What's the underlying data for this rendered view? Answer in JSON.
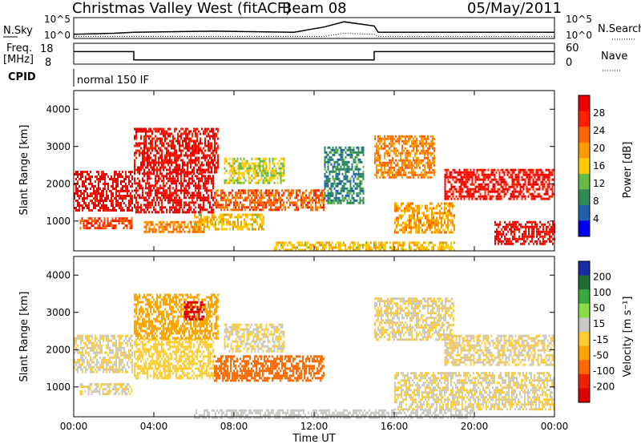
{
  "header": {
    "station": "Christmas Valley West (fitACF)",
    "beam": "Beam 08",
    "date": "05/May/2011"
  },
  "aux_panels": {
    "nsky_label": "N.Sky",
    "nsky_ticks": [
      "10^5",
      "10^0"
    ],
    "nsearch_label": "N.Search",
    "freq_label_line1": "Freq.",
    "freq_label_line2": "[MHz]",
    "freq_ticks": [
      "18",
      "8"
    ],
    "nave_ticks": [
      "60",
      "0"
    ],
    "nave_label": "Nave",
    "cpid_label": "CPID",
    "cpid_value": "normal 150 IF"
  },
  "colors": {
    "power": [
      "#0000ee",
      "#1f5fb0",
      "#2e8b57",
      "#66bb44",
      "#ffcc00",
      "#ff9900",
      "#ff6600",
      "#ff2200",
      "#ee0000"
    ],
    "velocity": [
      "#1a2aa8",
      "#1f6e3a",
      "#3aa83a",
      "#88dd44",
      "#c8c8c4",
      "#ffcc33",
      "#ffa500",
      "#ff6a00",
      "#ee2200",
      "#dd0000"
    ]
  },
  "chart_data": [
    {
      "type": "heatmap",
      "name": "power",
      "ylabel": "Slant Range [km]",
      "yticks": [
        "1000",
        "2000",
        "3000",
        "4000"
      ],
      "ylim": [
        200,
        4500
      ],
      "colorbar_label": "Power [dB]",
      "colorbar_ticks": [
        "4",
        "8",
        "12",
        "16",
        "20",
        "24",
        "28"
      ],
      "colorbar_range": [
        0,
        30
      ],
      "regions": [
        {
          "t": [
            0.0,
            2.9
          ],
          "r": [
            1300,
            2350
          ],
          "value": 28
        },
        {
          "t": [
            0.3,
            2.9
          ],
          "r": [
            800,
            1100
          ],
          "value": 24
        },
        {
          "t": [
            3.0,
            7.0
          ],
          "r": [
            1250,
            2300
          ],
          "value": 28
        },
        {
          "t": [
            3.0,
            7.2
          ],
          "r": [
            2300,
            3500
          ],
          "value": 27
        },
        {
          "t": [
            3.5,
            6.5
          ],
          "r": [
            700,
            1000
          ],
          "value": 20
        },
        {
          "t": [
            6.0,
            9.5
          ],
          "r": [
            800,
            1200
          ],
          "value": 16
        },
        {
          "t": [
            7.0,
            12.5
          ],
          "r": [
            1300,
            1850
          ],
          "value": 22
        },
        {
          "t": [
            7.5,
            10.5
          ],
          "r": [
            2000,
            2700
          ],
          "value": 14
        },
        {
          "t": [
            12.5,
            14.5
          ],
          "r": [
            1500,
            3000
          ],
          "value": 8
        },
        {
          "t": [
            15.0,
            18.0
          ],
          "r": [
            2200,
            3300
          ],
          "value": 20
        },
        {
          "t": [
            16.0,
            19.0
          ],
          "r": [
            700,
            1500
          ],
          "value": 18
        },
        {
          "t": [
            18.5,
            24.0
          ],
          "r": [
            1600,
            2400
          ],
          "value": 27
        },
        {
          "t": [
            21.0,
            24.0
          ],
          "r": [
            400,
            1000
          ],
          "value": 28
        },
        {
          "t": [
            10.0,
            19.0
          ],
          "r": [
            200,
            450
          ],
          "value": 16
        }
      ]
    },
    {
      "type": "heatmap",
      "name": "velocity",
      "ylabel": "Slant Range [km]",
      "yticks": [
        "1000",
        "2000",
        "3000",
        "4000"
      ],
      "ylim": [
        200,
        4500
      ],
      "xlabel": "Time UT",
      "xticks": [
        "00:00",
        "04:00",
        "08:00",
        "12:00",
        "16:00",
        "20:00",
        "00:00"
      ],
      "xlim": [
        0,
        24
      ],
      "colorbar_label": "Velocity [m s⁻¹]",
      "colorbar_ticks": [
        "200",
        "100",
        "50",
        "15",
        "-15",
        "-50",
        "-100",
        "-200"
      ],
      "colorbar_range": [
        -250,
        250
      ],
      "regions": [
        {
          "t": [
            0.0,
            2.9
          ],
          "r": [
            1400,
            2400
          ],
          "value": 0
        },
        {
          "t": [
            0.3,
            2.9
          ],
          "r": [
            800,
            1100
          ],
          "value": 0
        },
        {
          "t": [
            3.0,
            7.0
          ],
          "r": [
            1250,
            2300
          ],
          "value": -40
        },
        {
          "t": [
            3.0,
            7.2
          ],
          "r": [
            2300,
            3500
          ],
          "value": -60
        },
        {
          "t": [
            5.5,
            6.5
          ],
          "r": [
            2800,
            3300
          ],
          "value": -220
        },
        {
          "t": [
            7.0,
            12.5
          ],
          "r": [
            1200,
            1850
          ],
          "value": -110
        },
        {
          "t": [
            7.5,
            10.5
          ],
          "r": [
            1950,
            2700
          ],
          "value": 0
        },
        {
          "t": [
            15.0,
            19.0
          ],
          "r": [
            2300,
            3400
          ],
          "value": 0
        },
        {
          "t": [
            18.5,
            24.0
          ],
          "r": [
            1600,
            2400
          ],
          "value": 0
        },
        {
          "t": [
            16.0,
            24.0
          ],
          "r": [
            400,
            1400
          ],
          "value": 0
        },
        {
          "t": [
            6.0,
            20.0
          ],
          "r": [
            200,
            400
          ],
          "value": 30
        }
      ]
    }
  ],
  "time_series": {
    "nsky": [
      [
        0,
        0.2
      ],
      [
        2,
        0.25
      ],
      [
        3,
        0.3
      ],
      [
        7,
        0.35
      ],
      [
        11,
        0.3
      ],
      [
        12.5,
        0.55
      ],
      [
        13.5,
        0.8
      ],
      [
        15,
        0.6
      ],
      [
        15.2,
        0.3
      ],
      [
        24,
        0.3
      ]
    ],
    "nsearch": [
      [
        0,
        0.1
      ],
      [
        12.5,
        0.1
      ],
      [
        13.5,
        0.25
      ],
      [
        15,
        0.2
      ],
      [
        15.2,
        0.1
      ],
      [
        24,
        0.1
      ]
    ],
    "freq_mhz": [
      [
        0,
        14
      ],
      [
        3,
        14
      ],
      [
        3,
        10
      ],
      [
        15,
        10
      ],
      [
        15,
        14
      ],
      [
        24,
        14
      ]
    ]
  }
}
